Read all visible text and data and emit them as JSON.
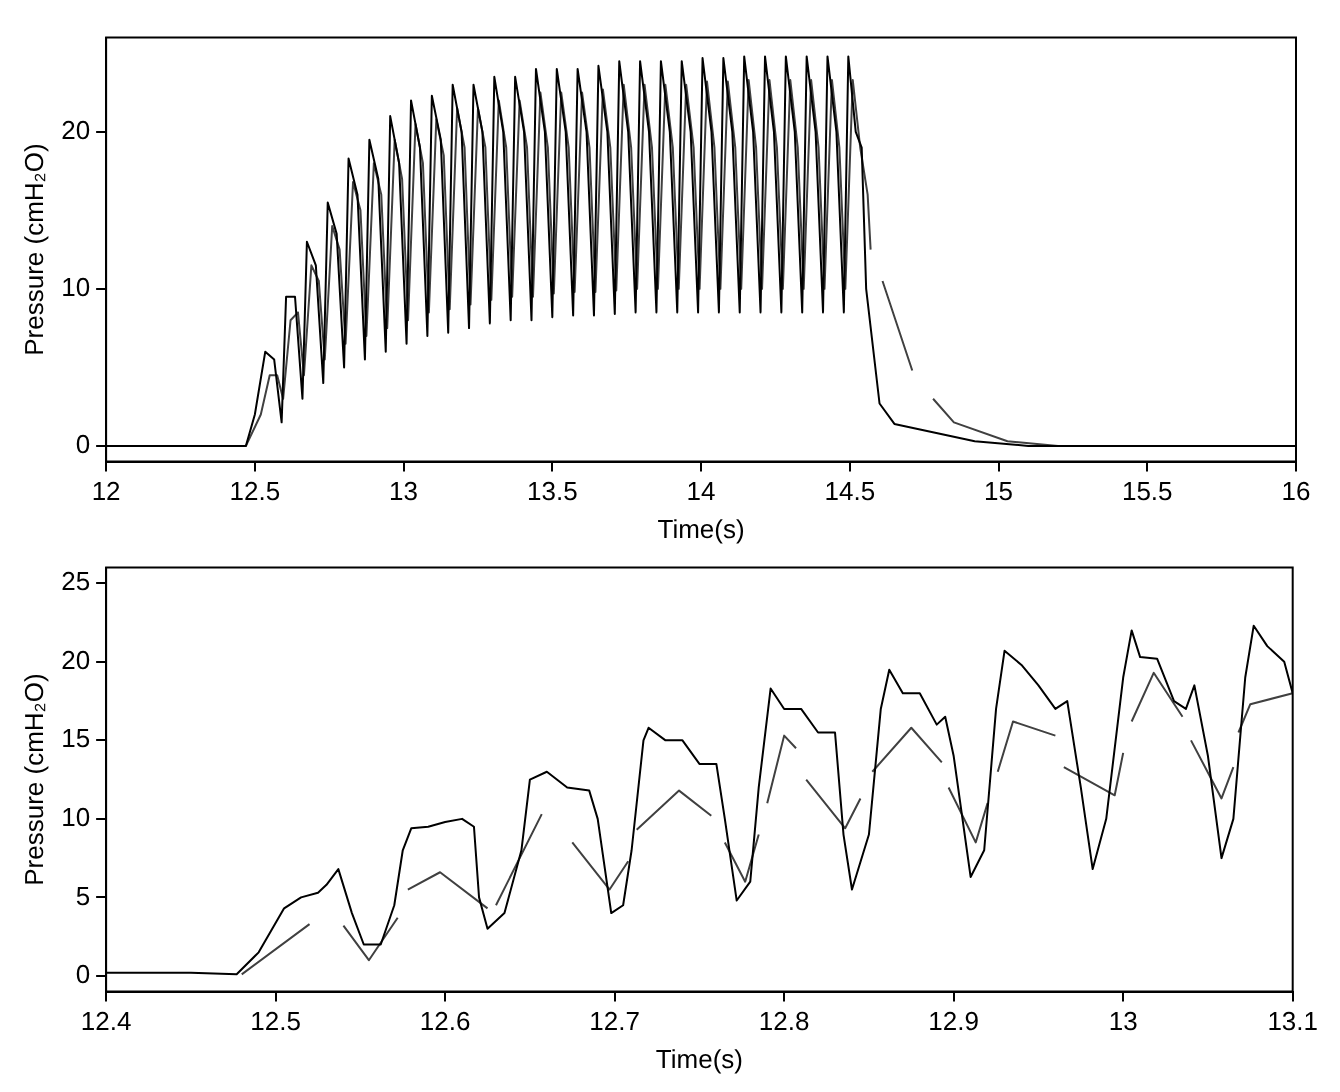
{
  "chart_data": [
    {
      "type": "line",
      "xlabel": "Time(s)",
      "ylabel": "Pressure (cmH₂O)",
      "xlim": [
        12,
        16
      ],
      "xticks": [
        12,
        12.5,
        13,
        13.5,
        14,
        14.5,
        15,
        15.5,
        16
      ],
      "ylim": [
        -1,
        26
      ],
      "yticks": [
        0,
        10,
        20
      ],
      "series": [
        {
          "color": "#000000",
          "x": [
            12,
            12.47,
            12.5,
            12.535,
            12.565,
            12.59,
            12.605,
            12.635,
            12.66,
            12.675,
            12.705,
            12.73,
            12.745,
            12.775,
            12.8,
            12.815,
            12.845,
            12.87,
            12.885,
            12.915,
            12.94,
            12.955,
            12.985,
            13.01,
            13.025,
            13.055,
            13.08,
            13.095,
            13.125,
            13.15,
            13.165,
            13.195,
            13.22,
            13.235,
            13.265,
            13.29,
            13.305,
            13.335,
            13.36,
            13.375,
            13.405,
            13.43,
            13.445,
            13.475,
            13.5,
            13.515,
            13.545,
            13.57,
            13.585,
            13.615,
            13.64,
            13.655,
            13.685,
            13.71,
            13.725,
            13.755,
            13.78,
            13.795,
            13.825,
            13.85,
            13.865,
            13.895,
            13.92,
            13.935,
            13.965,
            13.99,
            14.005,
            14.035,
            14.06,
            14.075,
            14.105,
            14.13,
            14.145,
            14.175,
            14.2,
            14.215,
            14.245,
            14.27,
            14.285,
            14.315,
            14.34,
            14.355,
            14.385,
            14.41,
            14.425,
            14.455,
            14.48,
            14.495,
            14.52,
            14.54,
            14.555,
            14.6,
            14.65,
            14.92,
            15.1,
            16
          ],
          "values": [
            0,
            0,
            2,
            6,
            5.5,
            1.5,
            9.5,
            9.5,
            3,
            13,
            11.5,
            4,
            15.5,
            13.5,
            5,
            18.3,
            16,
            5.5,
            19.5,
            17,
            6,
            21,
            18,
            6.5,
            22,
            19,
            7,
            22.3,
            19.5,
            7.2,
            23,
            20,
            7.5,
            23,
            20,
            7.8,
            23.5,
            20,
            8,
            23.5,
            20,
            8,
            24,
            20,
            8.2,
            24,
            20,
            8.3,
            24,
            20,
            8.3,
            24.2,
            20,
            8.4,
            24.5,
            20,
            8.5,
            24.5,
            20,
            8.5,
            24.5,
            20,
            8.5,
            24.5,
            20,
            8.5,
            24.7,
            20,
            8.5,
            24.7,
            20,
            8.5,
            24.8,
            20,
            8.5,
            24.8,
            20,
            8.5,
            24.8,
            20,
            8.5,
            24.8,
            20,
            8.5,
            24.8,
            20,
            8.5,
            24.8,
            20,
            19,
            10,
            2.7,
            1.4,
            0.3,
            0,
            0
          ]
        },
        {
          "color": "#404040",
          "x": [
            12,
            12.47,
            12.52,
            12.55,
            12.575,
            12.595,
            12.62,
            12.645,
            12.665,
            12.69,
            12.715,
            12.735,
            12.76,
            12.785,
            12.805,
            12.83,
            12.855,
            12.875,
            12.9,
            12.925,
            12.945,
            12.97,
            12.995,
            13.015,
            13.04,
            13.065,
            13.085,
            13.11,
            13.135,
            13.155,
            13.18,
            13.205,
            13.225,
            13.25,
            13.275,
            13.295,
            13.32,
            13.345,
            13.365,
            13.39,
            13.415,
            13.435,
            13.46,
            13.485,
            13.505,
            13.53,
            13.555,
            13.575,
            13.6,
            13.625,
            13.645,
            13.67,
            13.695,
            13.715,
            13.74,
            13.765,
            13.785,
            13.81,
            13.835,
            13.855,
            13.88,
            13.905,
            13.925,
            13.95,
            13.975,
            13.995,
            14.02,
            14.045,
            14.065,
            14.09,
            14.115,
            14.135,
            14.16,
            14.185,
            14.205,
            14.23,
            14.255,
            14.275,
            14.3,
            14.325,
            14.345,
            14.37,
            14.395,
            14.415,
            14.44,
            14.465,
            14.485,
            14.51,
            14.535,
            14.56,
            14.57,
            14.59,
            14.61,
            14.71,
            14.74,
            14.78,
            14.85,
            15.03,
            15.2,
            16
          ],
          "values": [
            0,
            0,
            2,
            4.5,
            4.5,
            3,
            8,
            8.5,
            4.5,
            11.5,
            10.5,
            5.5,
            14,
            12.5,
            6.5,
            16.8,
            15,
            7,
            18,
            16,
            7.5,
            19.5,
            17,
            8,
            20.5,
            18,
            8.5,
            20.8,
            18.5,
            8.7,
            21.5,
            19,
            9,
            21.5,
            19,
            9.3,
            22,
            19,
            9.5,
            22,
            19,
            9.5,
            22.5,
            19,
            9.7,
            22.5,
            19,
            9.8,
            22.5,
            19,
            9.8,
            22.7,
            19,
            9.9,
            23,
            19,
            10,
            23,
            19,
            10,
            23,
            19,
            10,
            23,
            19,
            10,
            23.2,
            19,
            10,
            23.2,
            19,
            10,
            23.3,
            19,
            10,
            23.3,
            19,
            10,
            23.3,
            19,
            10,
            23.3,
            19,
            10,
            23.3,
            19,
            10,
            23.3,
            19,
            16,
            12.5,
            null,
            10.5,
            4.8,
            null,
            3,
            1.5,
            0.3,
            0,
            0
          ]
        }
      ]
    },
    {
      "type": "line",
      "xlabel": "Time(s)",
      "ylabel": "Pressure (cmH₂O)",
      "xlim": [
        12.4,
        13.1
      ],
      "xticks": [
        12.4,
        12.5,
        12.6,
        12.7,
        12.8,
        12.9,
        13,
        13.1
      ],
      "ylim": [
        -1,
        26
      ],
      "yticks": [
        0,
        5,
        10,
        15,
        20,
        25
      ],
      "series": [
        {
          "color": "#000000",
          "x": [
            12.4,
            12.45,
            12.477,
            12.49,
            12.505,
            12.515,
            12.525,
            12.53,
            12.537,
            12.545,
            12.552,
            12.562,
            12.57,
            12.575,
            12.58,
            12.59,
            12.6,
            12.61,
            12.617,
            12.62,
            12.625,
            12.635,
            12.645,
            12.65,
            12.66,
            12.672,
            12.685,
            12.69,
            12.698,
            12.705,
            12.71,
            12.717,
            12.72,
            12.73,
            12.74,
            12.75,
            12.76,
            12.765,
            12.772,
            12.78,
            12.785,
            12.792,
            12.8,
            12.81,
            12.82,
            12.83,
            12.835,
            12.84,
            12.85,
            12.857,
            12.862,
            12.87,
            12.88,
            12.89,
            12.895,
            12.9,
            12.91,
            12.918,
            12.925,
            12.93,
            12.94,
            12.95,
            12.96,
            12.967,
            12.975,
            12.982,
            12.99,
            13.0,
            13.005,
            13.01,
            13.02,
            13.03,
            13.037,
            13.042,
            13.05,
            13.058,
            13.065,
            13.072,
            13.077,
            13.085,
            13.095,
            13.1
          ],
          "values": [
            0.2,
            0.2,
            0.1,
            1.5,
            4.3,
            5,
            5.3,
            5.8,
            6.8,
            4,
            2,
            2,
            4.5,
            8,
            9.4,
            9.5,
            9.8,
            10,
            9.5,
            5,
            3,
            4,
            8,
            12.5,
            13,
            12,
            11.8,
            10,
            4,
            4.5,
            8,
            15,
            15.8,
            15,
            15,
            13.5,
            13.5,
            10,
            4.8,
            6,
            12,
            18.3,
            17,
            17,
            15.5,
            15.5,
            9,
            5.5,
            9,
            17,
            19.5,
            18,
            18,
            16,
            16.5,
            14,
            6.3,
            8,
            17,
            20.7,
            19.8,
            18.5,
            17,
            17.5,
            12,
            6.8,
            10,
            19,
            22,
            20.3,
            20.2,
            17.5,
            17,
            18.5,
            14,
            7.5,
            10,
            19,
            22.3,
            21,
            20,
            18
          ]
        },
        {
          "color": "#404040",
          "x": [
            12.48,
            12.52,
            12.53,
            12.54,
            12.555,
            12.572,
            12.575,
            12.578,
            12.597,
            12.625,
            12.628,
            12.63,
            12.657,
            12.665,
            12.675,
            12.697,
            12.708,
            12.71,
            12.713,
            12.738,
            12.757,
            12.761,
            12.765,
            12.777,
            12.785,
            12.788,
            12.79,
            12.8,
            12.807,
            12.81,
            12.813,
            12.836,
            12.845,
            12.848,
            12.852,
            12.875,
            12.893,
            12.895,
            12.897,
            12.913,
            12.92,
            12.923,
            12.926,
            12.935,
            12.96,
            12.962,
            12.965,
            12.995,
            13.0,
            13.002,
            13.005,
            13.018,
            13.035,
            13.038,
            13.04,
            13.058,
            13.065,
            13.066,
            13.068,
            13.075,
            13.1
          ],
          "values": [
            0.1,
            3.3,
            null,
            3.2,
            1,
            3.7,
            null,
            5.5,
            6.6,
            4.3,
            null,
            4.5,
            10.3,
            null,
            8.5,
            5.5,
            7.3,
            null,
            9.3,
            11.8,
            10.2,
            null,
            8.5,
            6,
            9,
            null,
            11,
            15.3,
            14.5,
            null,
            12.5,
            9.4,
            11.3,
            null,
            13,
            15.8,
            13.6,
            null,
            12,
            8.5,
            11,
            null,
            13,
            16.2,
            15.3,
            null,
            13.3,
            11.5,
            14.2,
            null,
            16.2,
            19.3,
            16.5,
            null,
            15,
            11.3,
            13.3,
            null,
            15.5,
            17.3,
            18
          ]
        }
      ]
    }
  ]
}
